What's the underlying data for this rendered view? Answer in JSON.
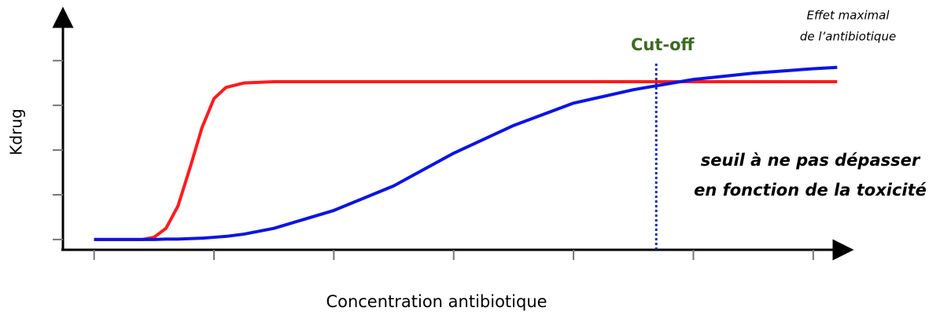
{
  "chart_data": {
    "type": "line",
    "xlabel": "Concentration antibiotique",
    "ylabel": "Kdrug",
    "x": [
      0,
      0.4,
      0.5,
      0.6,
      0.7,
      0.8,
      0.9,
      1.0,
      1.1,
      1.25,
      1.5,
      2,
      2.5,
      3,
      3.5,
      4,
      4.5,
      5,
      5.5,
      6,
      6.2
    ],
    "series": [
      {
        "color": "#ff1a1a",
        "values": [
          0,
          0,
          0.05,
          0.25,
          0.75,
          1.6,
          2.5,
          3.15,
          3.4,
          3.5,
          3.53,
          3.53,
          3.53,
          3.53,
          3.53,
          3.53,
          3.53,
          3.53,
          3.53,
          3.53,
          3.53
        ]
      },
      {
        "color": "#0a14e6",
        "values": [
          0,
          0,
          0,
          0.01,
          0.01,
          0.02,
          0.03,
          0.05,
          0.07,
          0.12,
          0.25,
          0.65,
          1.2,
          1.93,
          2.55,
          3.05,
          3.35,
          3.58,
          3.72,
          3.82,
          3.85
        ]
      }
    ],
    "xlim": [
      -0.26,
      6.27
    ],
    "ylim": [
      -0.23,
      5.04
    ],
    "xticks": [
      0,
      1,
      2,
      3,
      4,
      5,
      6
    ],
    "yticks": [
      0,
      1,
      2,
      3,
      4
    ],
    "cutoff": {
      "label": "Cut-off",
      "x": 4.69,
      "color": "#1f2bb5"
    },
    "annotations": [
      {
        "lines": [
          "Effet maximal",
          "de l’antibiotique"
        ]
      },
      {
        "lines": [
          "seuil à ne pas dépasser",
          "en fonction de la toxicité"
        ]
      }
    ]
  }
}
